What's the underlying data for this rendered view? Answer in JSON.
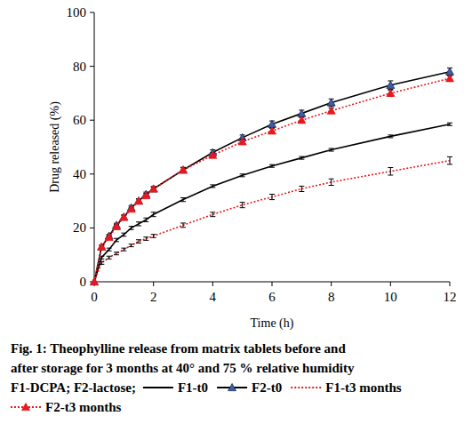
{
  "chart_data": {
    "type": "line",
    "x_label": "Time (h)",
    "y_label": "Drug released (%)",
    "xlim": [
      0,
      12
    ],
    "ylim": [
      0,
      100
    ],
    "xticks": [
      0,
      2,
      4,
      6,
      8,
      10,
      12
    ],
    "yticks": [
      0,
      20,
      40,
      60,
      80,
      100
    ],
    "grid": false,
    "x": [
      0,
      0.25,
      0.5,
      0.75,
      1,
      1.25,
      1.5,
      1.75,
      2,
      3,
      4,
      5,
      6,
      7,
      8,
      10,
      12
    ],
    "series": [
      {
        "name": "F1-t0",
        "color": "#000000",
        "line_style": "solid",
        "marker": "none",
        "values": [
          0,
          9,
          12,
          15.5,
          17.5,
          20,
          21.5,
          23,
          25,
          30.5,
          35.5,
          39.5,
          43,
          46,
          49,
          54,
          58.5
        ],
        "errors": [
          0,
          0.5,
          0.5,
          0.6,
          0.6,
          0.6,
          0.7,
          0.7,
          0.8,
          0.7,
          0.5,
          0.5,
          0.5,
          0.5,
          0.5,
          0.5,
          0.5
        ]
      },
      {
        "name": "F2-t0",
        "color": "#3c5fa8",
        "line_style": "solid",
        "marker": "triangle",
        "values": [
          0,
          13,
          17,
          21,
          24,
          27.5,
          30,
          32.5,
          34.5,
          41.5,
          48,
          53.5,
          58.5,
          62.5,
          66.5,
          73,
          78
        ],
        "errors": [
          0,
          0.6,
          0.6,
          0.7,
          0.8,
          0.8,
          0.8,
          0.8,
          0.8,
          1,
          1,
          1,
          1.2,
          1.2,
          1.4,
          1.6,
          1.4
        ]
      },
      {
        "name": "F1-t3 months",
        "color": "#e8191e",
        "line_style": "dotted",
        "marker": "none",
        "values": [
          0,
          7,
          9,
          10.5,
          12,
          13.5,
          15,
          16,
          17,
          21,
          25,
          28.5,
          31.5,
          34.5,
          37,
          41,
          45
        ],
        "errors": [
          0,
          0.5,
          0.5,
          0.5,
          0.5,
          0.5,
          0.6,
          0.6,
          0.6,
          0.8,
          0.8,
          1,
          1,
          1,
          1.2,
          1.4,
          1.4
        ]
      },
      {
        "name": "F2-t3 months",
        "color": "#e8191e",
        "line_style": "dotted",
        "marker": "triangle",
        "values": [
          0,
          13,
          16.5,
          20.5,
          24,
          27,
          30,
          32,
          34.5,
          41.5,
          47,
          52,
          56,
          60,
          63.5,
          70,
          75.5
        ],
        "errors": [
          0,
          0.6,
          0.6,
          0.7,
          0.7,
          0.7,
          0.7,
          0.8,
          0.8,
          0.8,
          0.9,
          1,
          1,
          1,
          1,
          1.2,
          1
        ]
      }
    ],
    "caption": [
      "Fig. 1: Theophylline release from matrix tablets before and",
      "after storage for 3 months at 40° and 75 % relative humidity",
      "F1-DCPA; F2-lactose;"
    ]
  }
}
